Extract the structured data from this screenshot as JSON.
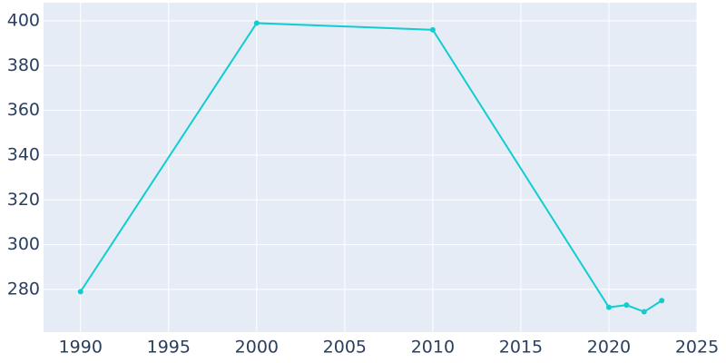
{
  "chart_data": {
    "type": "line",
    "x": [
      1990,
      2000,
      2010,
      2020,
      2021,
      2022,
      2023
    ],
    "series": [
      {
        "color": "#11cdd0",
        "values": [
          279,
          399,
          396,
          272,
          273,
          270,
          275
        ]
      }
    ],
    "xlim": [
      1987.9,
      2025
    ],
    "xticks": [
      1990,
      1995,
      2000,
      2005,
      2010,
      2015,
      2020,
      2025
    ],
    "ylim": [
      260.9,
      408.1
    ],
    "yticks": [
      280,
      300,
      320,
      340,
      360,
      380,
      400
    ],
    "grid": true
  }
}
